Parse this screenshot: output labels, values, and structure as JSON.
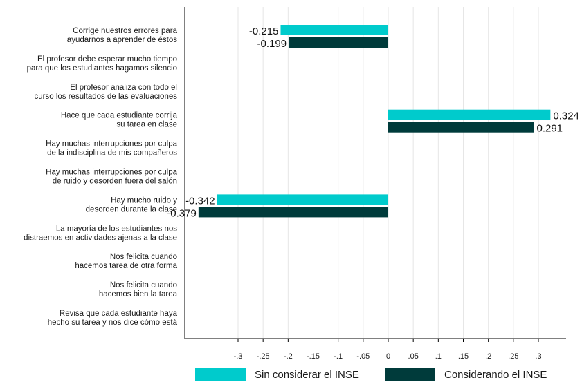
{
  "chart_data": {
    "type": "bar",
    "orientation": "horizontal",
    "categories": [
      [
        "Corrige nuestros errores para",
        "ayudarnos a aprender de éstos"
      ],
      [
        "El profesor debe esperar mucho tiempo",
        "para que los estudiantes hagamos silencio"
      ],
      [
        "El profesor analiza con todo el",
        "curso los resultados de las evaluaciones"
      ],
      [
        "Hace que cada estudiante corrija",
        "su tarea en clase"
      ],
      [
        "Hay muchas interrupciones por culpa",
        "de la indisciplina de mis compañeros"
      ],
      [
        "Hay muchas interrupciones por culpa",
        "de ruido y desorden fuera del salón"
      ],
      [
        "Hay mucho ruido y",
        "desorden durante la clase"
      ],
      [
        "La mayoría de los estudiantes nos",
        "distraemos en actividades ajenas a la clase"
      ],
      [
        "Nos felicita cuando",
        "hacemos tarea de otra forma"
      ],
      [
        "Nos felicita cuando",
        "hacemos bien la tarea"
      ],
      [
        "Revisa que cada estudiante haya",
        "hecho su tarea y nos dice cómo está"
      ]
    ],
    "series": [
      {
        "name": "Sin considerar el INSE",
        "color": "#00cbcc",
        "values": [
          -0.215,
          null,
          null,
          0.324,
          null,
          null,
          -0.342,
          null,
          null,
          null,
          null
        ],
        "value_labels": [
          "-0.215",
          "",
          "",
          "0.324",
          "",
          "",
          "-0.342",
          "",
          "",
          "",
          ""
        ]
      },
      {
        "name": "Considerando el INSE",
        "color": "#003b3b",
        "values": [
          -0.199,
          null,
          null,
          0.291,
          null,
          null,
          -0.379,
          null,
          null,
          null,
          null
        ],
        "value_labels": [
          "-0.199",
          "",
          "",
          "0.291",
          "",
          "",
          "-0.379",
          "",
          "",
          "",
          ""
        ]
      }
    ],
    "xlim": [
      -0.405,
      0.355
    ],
    "xticks": [
      -0.3,
      -0.25,
      -0.2,
      -0.15,
      -0.1,
      -0.05,
      0,
      0.05,
      0.1,
      0.15,
      0.2,
      0.25,
      0.3
    ],
    "xtick_labels": [
      "-.3",
      "-.25",
      "-.2",
      "-.15",
      "-.1",
      "-.05",
      "0",
      ".05",
      ".1",
      ".15",
      ".2",
      ".25",
      ".3"
    ],
    "grid": "vertical",
    "grid_color": "#e6e6e6",
    "legend_position": "bottom"
  }
}
